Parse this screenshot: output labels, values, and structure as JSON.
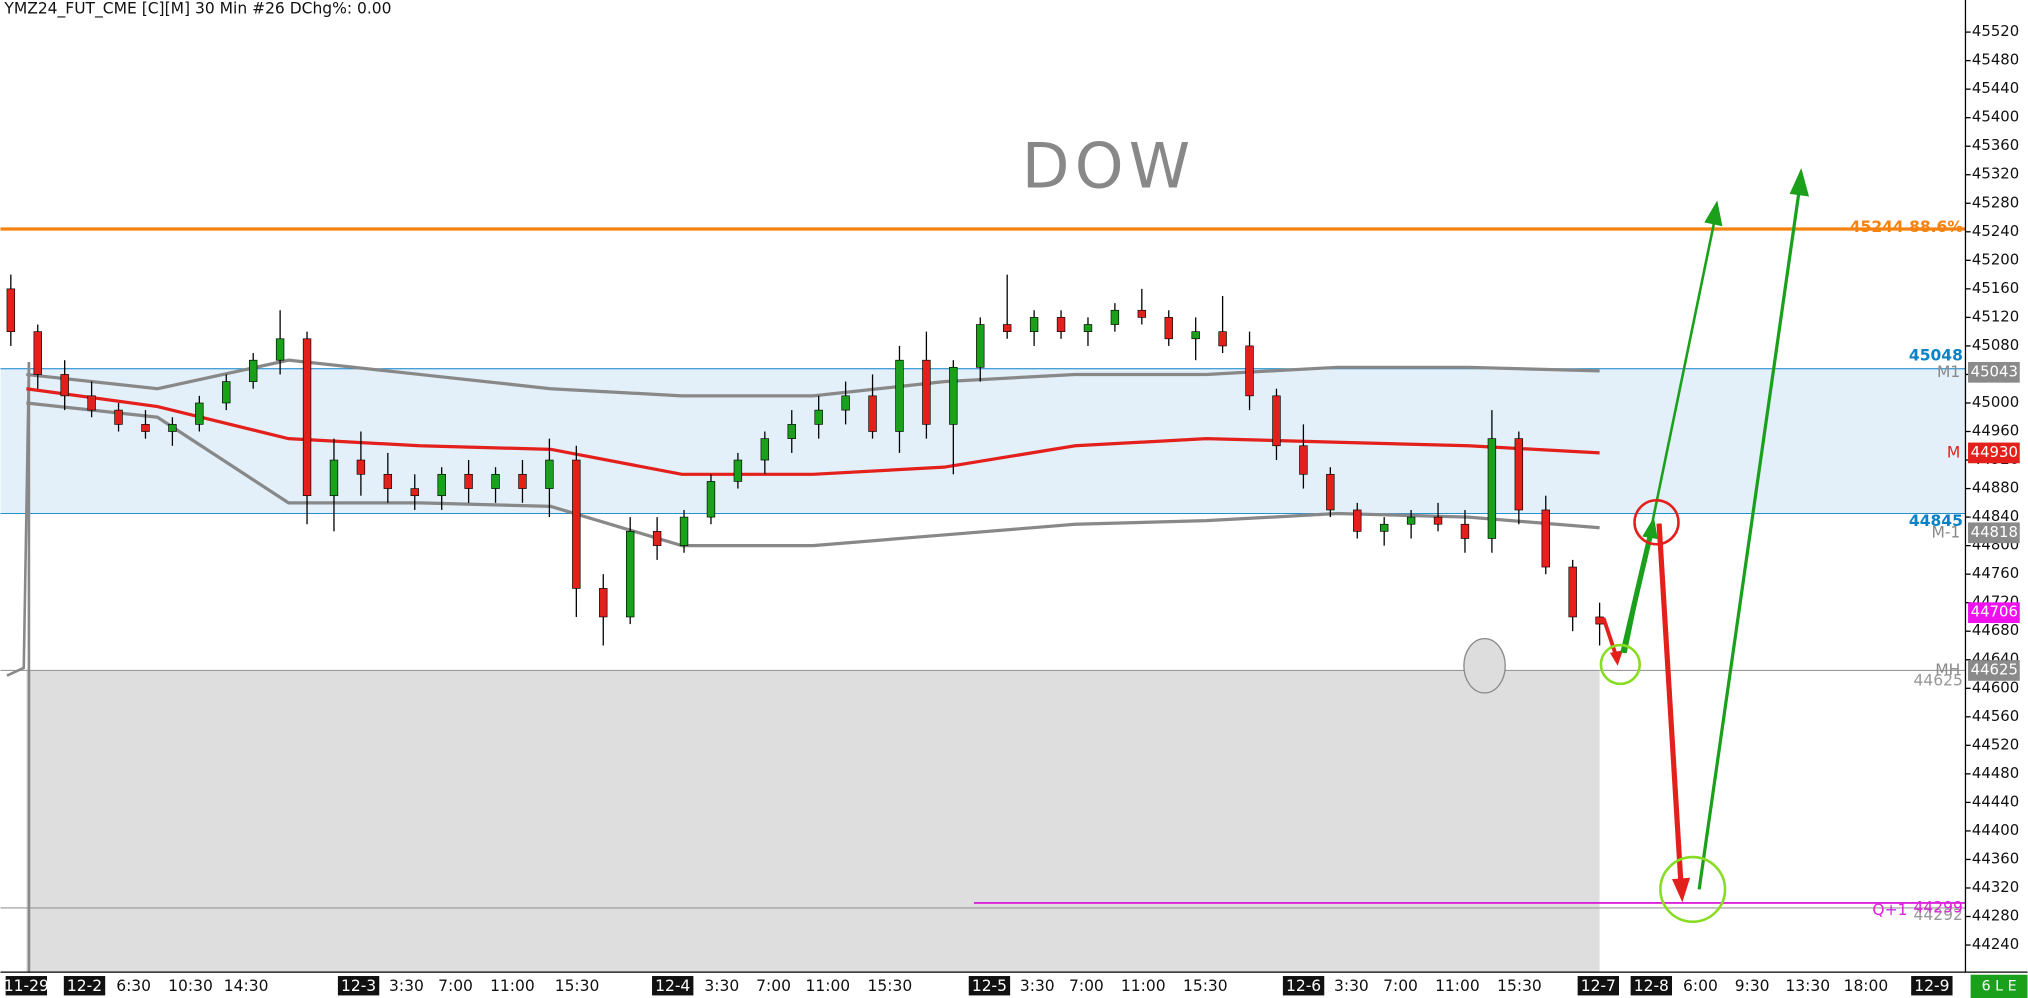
{
  "chart_data": {
    "type": "candlestick",
    "title": "YMZ24_FUT_CME [C][M] 30 Min #26 DChg%: 0.00",
    "watermark": "DOW",
    "ylim": [
      44202,
      45565
    ],
    "yticks": [
      44240,
      44280,
      44320,
      44360,
      44400,
      44440,
      44480,
      44520,
      44560,
      44600,
      44640,
      44680,
      44720,
      44760,
      44800,
      44840,
      44880,
      44920,
      44960,
      45000,
      45040,
      45080,
      45120,
      45160,
      45200,
      45240,
      45280,
      45320,
      45360,
      45400,
      45440,
      45480,
      45520
    ],
    "date_labels": [
      "11-29",
      "12-2",
      "12-3",
      "12-4",
      "12-5",
      "12-6",
      "12-7",
      "12-8",
      "12-9"
    ],
    "time_labels": [
      "6:30",
      "10:30",
      "14:30",
      "3:30",
      "7:00",
      "11:00",
      "15:30",
      "3:30",
      "7:00",
      "11:00",
      "15:30",
      "3:30",
      "7:00",
      "11:00",
      "15:30",
      "3:30",
      "7:00",
      "11:00",
      "15:30",
      "6:00",
      "9:30",
      "13:30",
      "18:00"
    ],
    "up_color": "#1aa01a",
    "down_color": "#e3201c",
    "candles": [
      [
        45160,
        45180,
        45080,
        45100
      ],
      [
        45100,
        45110,
        45020,
        45040
      ],
      [
        45040,
        45060,
        44990,
        45010
      ],
      [
        45010,
        45030,
        44980,
        44990
      ],
      [
        44990,
        45000,
        44960,
        44970
      ],
      [
        44970,
        44990,
        44950,
        44960
      ],
      [
        44960,
        44980,
        44940,
        44970
      ],
      [
        44970,
        45010,
        44960,
        45000
      ],
      [
        45000,
        45040,
        44990,
        45030
      ],
      [
        45030,
        45070,
        45020,
        45060
      ],
      [
        45060,
        45130,
        45040,
        45090
      ],
      [
        45090,
        45100,
        44830,
        44870
      ],
      [
        44870,
        44950,
        44820,
        44920
      ],
      [
        44920,
        44960,
        44870,
        44900
      ],
      [
        44900,
        44930,
        44860,
        44880
      ],
      [
        44880,
        44900,
        44850,
        44870
      ],
      [
        44870,
        44910,
        44850,
        44900
      ],
      [
        44900,
        44920,
        44860,
        44880
      ],
      [
        44880,
        44910,
        44860,
        44900
      ],
      [
        44900,
        44920,
        44860,
        44880
      ],
      [
        44880,
        44950,
        44840,
        44920
      ],
      [
        44920,
        44940,
        44700,
        44740
      ],
      [
        44740,
        44760,
        44660,
        44700
      ],
      [
        44700,
        44840,
        44690,
        44820
      ],
      [
        44820,
        44840,
        44780,
        44800
      ],
      [
        44800,
        44850,
        44790,
        44840
      ],
      [
        44840,
        44900,
        44830,
        44890
      ],
      [
        44890,
        44930,
        44880,
        44920
      ],
      [
        44920,
        44960,
        44900,
        44950
      ],
      [
        44950,
        44990,
        44930,
        44970
      ],
      [
        44970,
        45010,
        44950,
        44990
      ],
      [
        44990,
        45030,
        44970,
        45010
      ],
      [
        45010,
        45040,
        44950,
        44960
      ],
      [
        44960,
        45080,
        44930,
        45060
      ],
      [
        45060,
        45100,
        44950,
        44970
      ],
      [
        44970,
        45060,
        44900,
        45050
      ],
      [
        45050,
        45120,
        45030,
        45110
      ],
      [
        45110,
        45180,
        45090,
        45100
      ],
      [
        45100,
        45130,
        45080,
        45120
      ],
      [
        45120,
        45130,
        45090,
        45100
      ],
      [
        45100,
        45120,
        45080,
        45110
      ],
      [
        45110,
        45140,
        45100,
        45130
      ],
      [
        45130,
        45160,
        45110,
        45120
      ],
      [
        45120,
        45130,
        45080,
        45090
      ],
      [
        45090,
        45120,
        45060,
        45100
      ],
      [
        45100,
        45150,
        45070,
        45080
      ],
      [
        45080,
        45100,
        44990,
        45010
      ],
      [
        45010,
        45020,
        44920,
        44940
      ],
      [
        44940,
        44970,
        44880,
        44900
      ],
      [
        44900,
        44910,
        44840,
        44850
      ],
      [
        44850,
        44860,
        44810,
        44820
      ],
      [
        44820,
        44840,
        44800,
        44830
      ],
      [
        44830,
        44850,
        44810,
        44840
      ],
      [
        44840,
        44860,
        44820,
        44830
      ],
      [
        44830,
        44850,
        44790,
        44810
      ],
      [
        44810,
        44990,
        44790,
        44950
      ],
      [
        44950,
        44960,
        44830,
        44850
      ],
      [
        44850,
        44870,
        44760,
        44770
      ],
      [
        44770,
        44780,
        44680,
        44700
      ],
      [
        44700,
        44720,
        44660,
        44690
      ]
    ],
    "series": [
      {
        "name": "M1",
        "color": "#888888",
        "values": [
          45040,
          45020,
          45060,
          45040,
          45020,
          45010,
          45010,
          45030,
          45040,
          45040,
          45050,
          45050,
          45045
        ]
      },
      {
        "name": "M",
        "color": "#e3201c",
        "values": [
          45020,
          44995,
          44950,
          44940,
          44935,
          44900,
          44900,
          44910,
          44940,
          44950,
          44945,
          44940,
          44930
        ]
      },
      {
        "name": "M-1",
        "color": "#888888",
        "values": [
          45000,
          44980,
          44860,
          44860,
          44855,
          44800,
          44800,
          44815,
          44830,
          44835,
          44845,
          44840,
          44825
        ]
      }
    ],
    "band": {
      "top": 45048,
      "bottom": 44845,
      "color": "#0a82c8"
    },
    "fib_level": {
      "label": "45244 88.6%",
      "value": 45244,
      "color": "#f5820f"
    },
    "axis_tags": [
      {
        "name": "M1",
        "value": 45043,
        "color": "#8a8a8a"
      },
      {
        "name": "M",
        "value": 44930,
        "color": "#e3201c"
      },
      {
        "name": "M-1",
        "value": 44818,
        "color": "#8a8a8a"
      },
      {
        "name": "MH",
        "value": 44625,
        "color": "#8a8a8a"
      }
    ],
    "last_price": {
      "value": 44706,
      "color": "#ee11ee"
    },
    "mh_level": {
      "value": 44625
    },
    "q_level": {
      "name": "Q+1",
      "value": 44299,
      "color": "#dd22dd"
    },
    "low_level": {
      "value": 44292
    },
    "status": "6 L E"
  }
}
